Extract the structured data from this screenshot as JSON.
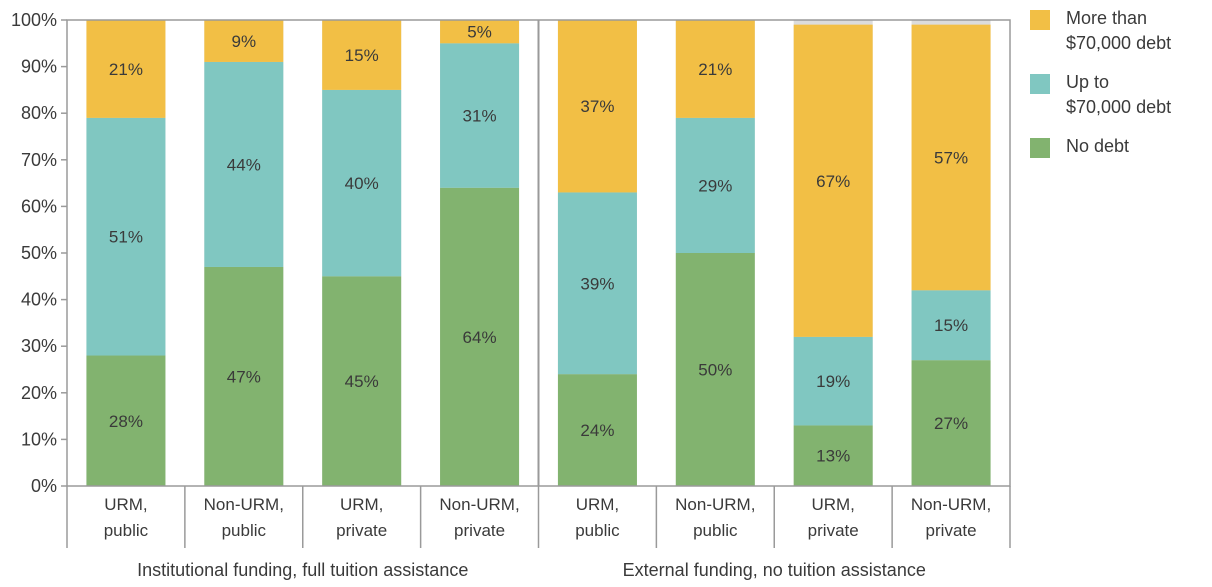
{
  "chart_data": {
    "type": "bar",
    "stacked": true,
    "percent": true,
    "ylim": [
      0,
      100
    ],
    "yticks": [
      "0%",
      "10%",
      "20%",
      "30%",
      "40%",
      "50%",
      "60%",
      "70%",
      "80%",
      "90%",
      "100%"
    ],
    "categories": [
      [
        "URM,",
        "public"
      ],
      [
        "Non-URM,",
        "public"
      ],
      [
        "URM,",
        "private"
      ],
      [
        "Non-URM,",
        "private"
      ],
      [
        "URM,",
        "public"
      ],
      [
        "Non-URM,",
        "public"
      ],
      [
        "URM,",
        "private"
      ],
      [
        "Non-URM,",
        "private"
      ]
    ],
    "groups": [
      {
        "label": "Institutional funding, full tuition assistance",
        "start": 0,
        "end": 3
      },
      {
        "label": "External funding, no tuition assistance",
        "start": 4,
        "end": 7
      }
    ],
    "series": [
      {
        "name": "No debt",
        "color": "#82b36f",
        "values": [
          28,
          47,
          45,
          64,
          24,
          50,
          13,
          27
        ],
        "labels": [
          "28%",
          "47%",
          "45%",
          "64%",
          "24%",
          "50%",
          "13%",
          "27%"
        ]
      },
      {
        "name": "Up to $70,000 debt",
        "color": "#80c7c1",
        "values": [
          51,
          44,
          40,
          31,
          39,
          29,
          19,
          15
        ],
        "labels": [
          "51%",
          "44%",
          "40%",
          "31%",
          "39%",
          "29%",
          "19%",
          "15%"
        ]
      },
      {
        "name": "More than $70,000 debt",
        "color": "#f2bf45",
        "values": [
          21,
          9,
          15,
          5,
          37,
          21,
          67,
          57
        ],
        "labels": [
          "21%",
          "9%",
          "15%",
          "5%",
          "37%",
          "21%",
          "67%",
          "57%"
        ]
      }
    ],
    "legend": {
      "position": "right",
      "items": [
        {
          "lines": [
            "More than",
            "$70,000 debt"
          ],
          "color": "#f2bf45"
        },
        {
          "lines": [
            "Up to",
            "$70,000 debt"
          ],
          "color": "#80c7c1"
        },
        {
          "lines": [
            "No debt"
          ],
          "color": "#82b36f"
        }
      ]
    },
    "colors": {
      "background_band": "#dcdcdc",
      "frame": "#9a9a9a"
    }
  }
}
